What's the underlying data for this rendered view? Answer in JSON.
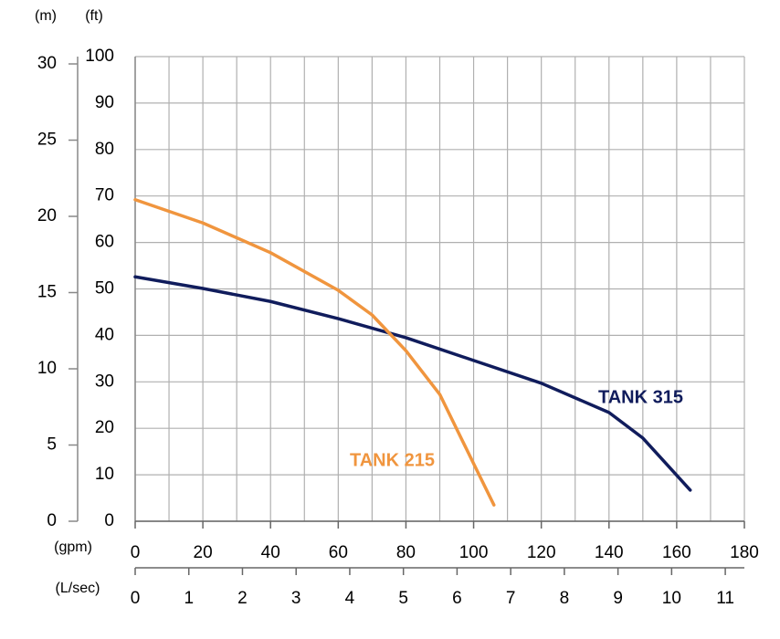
{
  "chart_data": {
    "type": "line",
    "ylabel": "(ft)",
    "y2label": "(m)",
    "xlabel": "(gpm)",
    "x2label": "(L/sec)",
    "xlim": [
      0,
      180
    ],
    "xticks": [
      0,
      20,
      40,
      60,
      80,
      100,
      120,
      140,
      160,
      180
    ],
    "xgrid": [
      0,
      10,
      20,
      30,
      40,
      50,
      60,
      70,
      80,
      90,
      100,
      110,
      120,
      130,
      140,
      150,
      160,
      170,
      180
    ],
    "ylim": [
      0,
      100
    ],
    "yticks": [
      0,
      10,
      20,
      30,
      40,
      50,
      60,
      70,
      80,
      90,
      100
    ],
    "y2lim": [
      0,
      30.48
    ],
    "y2ticks": [
      0,
      5,
      10,
      15,
      20,
      25,
      30
    ],
    "x2lim": [
      0,
      11.356
    ],
    "x2ticks": [
      0,
      1,
      2,
      3,
      4,
      5,
      6,
      7,
      8,
      9,
      10,
      11
    ],
    "grid": true,
    "series": [
      {
        "name": "TANK 315",
        "color": "#101c5c",
        "x": [
          0,
          20,
          40,
          60,
          80,
          100,
          120,
          140,
          150,
          164
        ],
        "values": [
          52.6,
          50.1,
          47.3,
          43.6,
          39.5,
          34.6,
          29.7,
          23.4,
          17.9,
          6.7
        ]
      },
      {
        "name": "TANK 215",
        "color": "#f0953e",
        "x": [
          0,
          20,
          30,
          40,
          60,
          70,
          80,
          90,
          100,
          106
        ],
        "values": [
          69.2,
          64.2,
          61,
          57.8,
          49.7,
          44.4,
          36.7,
          27.3,
          12.4,
          3.5
        ]
      }
    ]
  }
}
